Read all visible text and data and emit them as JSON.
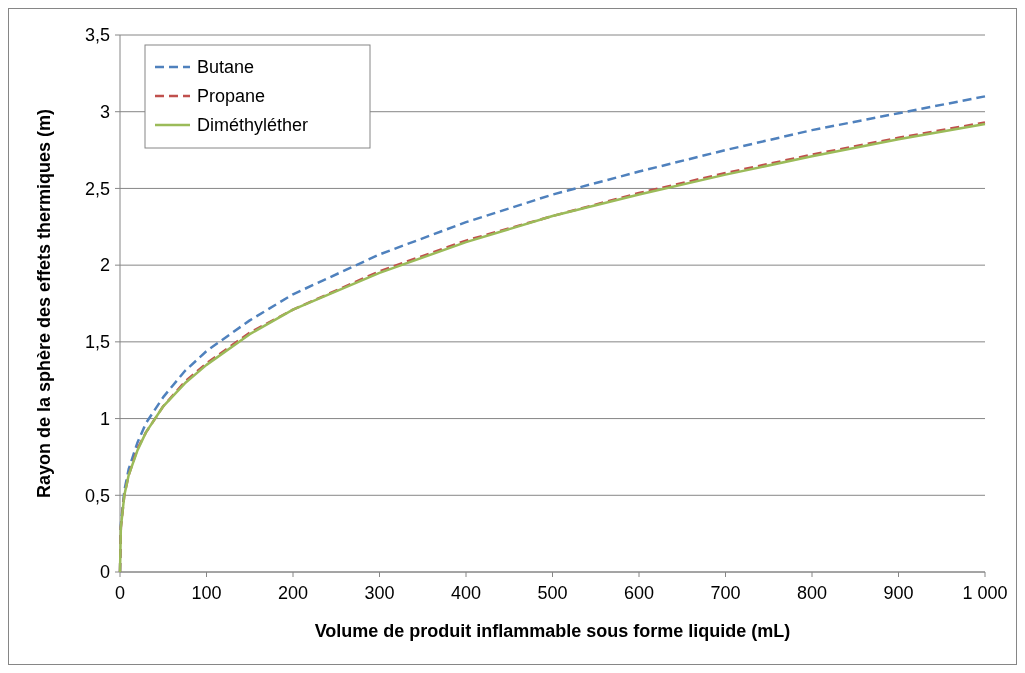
{
  "chart_data": {
    "type": "line",
    "xlabel": "Volume de produit inflammable sous forme liquide (mL)",
    "ylabel": "Rayon de la sphère des effets thermiques (m)",
    "x": [
      0,
      1,
      5,
      10,
      20,
      30,
      50,
      75,
      100,
      150,
      200,
      300,
      400,
      500,
      600,
      700,
      800,
      900,
      1000
    ],
    "series": [
      {
        "name": "Butane",
        "color": "#4f81bd",
        "line_style": "dashed",
        "values": [
          0,
          0.31,
          0.53,
          0.67,
          0.84,
          0.97,
          1.14,
          1.31,
          1.44,
          1.64,
          1.81,
          2.07,
          2.28,
          2.46,
          2.61,
          2.75,
          2.88,
          2.99,
          3.1
        ]
      },
      {
        "name": "Propane",
        "color": "#c0504d",
        "line_style": "dashed",
        "values": [
          0,
          0.29,
          0.5,
          0.63,
          0.8,
          0.91,
          1.08,
          1.24,
          1.36,
          1.56,
          1.71,
          1.96,
          2.16,
          2.32,
          2.47,
          2.6,
          2.72,
          2.83,
          2.93
        ]
      },
      {
        "name": "Diméthyléther",
        "color": "#9bbb59",
        "line_style": "solid",
        "values": [
          0,
          0.29,
          0.5,
          0.63,
          0.79,
          0.91,
          1.08,
          1.23,
          1.35,
          1.55,
          1.71,
          1.95,
          2.15,
          2.32,
          2.46,
          2.59,
          2.71,
          2.82,
          2.92
        ]
      }
    ],
    "xlim": [
      0,
      1000
    ],
    "xticks": [
      0,
      100,
      200,
      300,
      400,
      500,
      600,
      700,
      800,
      900,
      {
        "value": 1000,
        "label": "1 000"
      }
    ],
    "ylim": [
      0,
      3.5
    ],
    "yticks": [
      0,
      {
        "value": 0.5,
        "label": "0,5"
      },
      1,
      {
        "value": 1.5,
        "label": "1,5"
      },
      2,
      {
        "value": 2.5,
        "label": "2,5"
      },
      3,
      {
        "value": 3.5,
        "label": "3,5"
      }
    ],
    "grid": "y",
    "legend": "top left"
  }
}
